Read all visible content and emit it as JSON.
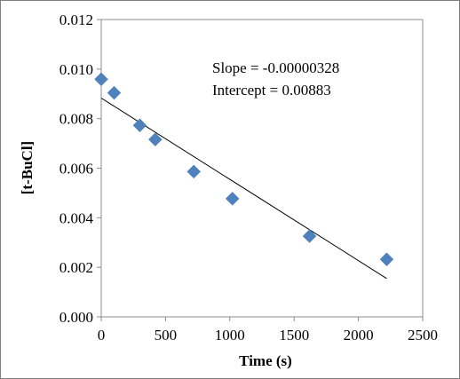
{
  "chart_data": {
    "type": "scatter",
    "xlabel": "Time (s)",
    "ylabel": "[t-BuCl]",
    "xlim": [
      0,
      2500
    ],
    "ylim": [
      0,
      0.012
    ],
    "x_ticks": [
      "0",
      "500",
      "1000",
      "1500",
      "2000",
      "2500"
    ],
    "y_ticks": [
      "0.000",
      "0.002",
      "0.004",
      "0.006",
      "0.008",
      "0.010",
      "0.012"
    ],
    "grid": false,
    "legend": false,
    "series": [
      {
        "marker": "diamond",
        "color": "#4f81bd",
        "points": [
          {
            "x": 0,
            "y": 0.00959
          },
          {
            "x": 100,
            "y": 0.00904
          },
          {
            "x": 300,
            "y": 0.00773
          },
          {
            "x": 420,
            "y": 0.00716
          },
          {
            "x": 720,
            "y": 0.00586
          },
          {
            "x": 1020,
            "y": 0.00477
          },
          {
            "x": 1620,
            "y": 0.00326
          },
          {
            "x": 2220,
            "y": 0.00232
          }
        ]
      }
    ],
    "trendline": {
      "slope": -3.28e-06,
      "intercept": 0.00883,
      "x_range": [
        0,
        2220
      ],
      "color": "#000000"
    },
    "annotations": {
      "slope_text": "Slope = -0.00000328",
      "intercept_text": "Intercept = 0.00883"
    }
  }
}
